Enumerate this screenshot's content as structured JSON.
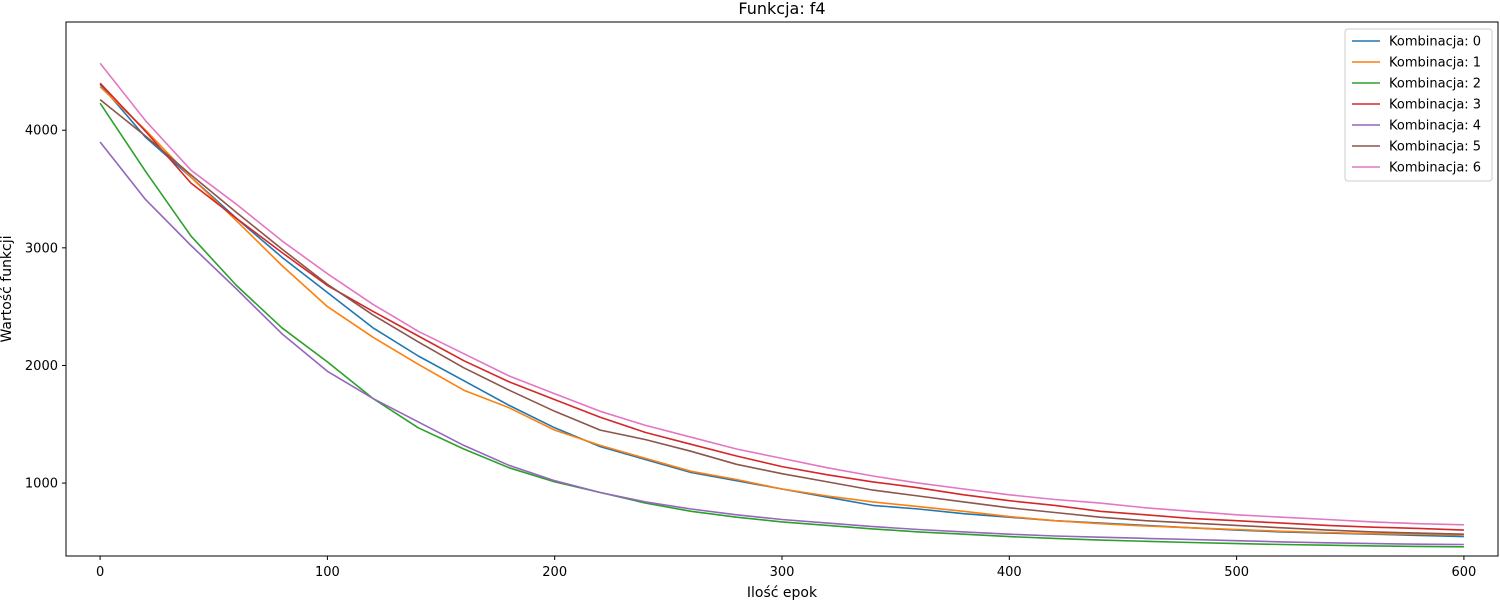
{
  "chart_data": {
    "type": "line",
    "title": "Funkcja: f4",
    "xlabel": "Ilość epok",
    "ylabel": "Wartość funkcji",
    "xlim": [
      -15,
      615
    ],
    "ylim": [
      380,
      4920
    ],
    "xticks": [
      0,
      100,
      200,
      300,
      400,
      500,
      600
    ],
    "yticks": [
      1000,
      2000,
      3000,
      4000
    ],
    "grid": false,
    "legend_position": "top-right",
    "x": [
      0,
      20,
      40,
      60,
      80,
      100,
      120,
      140,
      160,
      180,
      200,
      220,
      240,
      260,
      280,
      300,
      320,
      340,
      360,
      380,
      400,
      420,
      440,
      460,
      480,
      500,
      520,
      540,
      560,
      580,
      600
    ],
    "series": [
      {
        "name": "Kombinacja: 0",
        "color": "#1f77b4",
        "values": [
          4390,
          3940,
          3600,
          3250,
          2920,
          2620,
          2320,
          2080,
          1870,
          1660,
          1470,
          1310,
          1200,
          1090,
          1020,
          950,
          880,
          810,
          780,
          740,
          710,
          680,
          660,
          640,
          620,
          600,
          585,
          575,
          565,
          555,
          545
        ]
      },
      {
        "name": "Kombinacja: 1",
        "color": "#ff7f0e",
        "values": [
          4370,
          4000,
          3600,
          3230,
          2850,
          2500,
          2240,
          2010,
          1790,
          1640,
          1450,
          1320,
          1210,
          1100,
          1030,
          950,
          890,
          840,
          800,
          760,
          715,
          680,
          655,
          635,
          620,
          605,
          590,
          580,
          570,
          565,
          560
        ]
      },
      {
        "name": "Kombinacja: 2",
        "color": "#2ca02c",
        "values": [
          4230,
          3650,
          3100,
          2680,
          2320,
          2030,
          1720,
          1470,
          1290,
          1130,
          1010,
          920,
          830,
          760,
          710,
          670,
          640,
          610,
          585,
          565,
          545,
          530,
          515,
          505,
          495,
          485,
          478,
          472,
          466,
          462,
          458
        ]
      },
      {
        "name": "Kombinacja: 3",
        "color": "#d62728",
        "values": [
          4400,
          3990,
          3550,
          3250,
          2960,
          2680,
          2460,
          2250,
          2040,
          1860,
          1710,
          1560,
          1430,
          1330,
          1230,
          1140,
          1070,
          1010,
          960,
          900,
          850,
          810,
          760,
          730,
          700,
          680,
          660,
          640,
          625,
          615,
          600
        ]
      },
      {
        "name": "Kombinacja: 4",
        "color": "#9467bd",
        "values": [
          3900,
          3410,
          3020,
          2650,
          2270,
          1950,
          1720,
          1520,
          1320,
          1150,
          1020,
          920,
          840,
          780,
          730,
          690,
          660,
          630,
          605,
          585,
          565,
          550,
          540,
          530,
          520,
          510,
          500,
          492,
          485,
          480,
          478
        ]
      },
      {
        "name": "Kombinacja: 5",
        "color": "#8c564b",
        "values": [
          4260,
          3950,
          3620,
          3300,
          2990,
          2690,
          2430,
          2200,
          1980,
          1790,
          1610,
          1450,
          1370,
          1270,
          1160,
          1080,
          1010,
          940,
          890,
          840,
          790,
          750,
          710,
          680,
          660,
          640,
          620,
          600,
          585,
          575,
          565
        ]
      },
      {
        "name": "Kombinacja: 6",
        "color": "#e377c2",
        "values": [
          4570,
          4080,
          3660,
          3370,
          3060,
          2780,
          2520,
          2290,
          2100,
          1910,
          1760,
          1610,
          1490,
          1390,
          1290,
          1210,
          1130,
          1060,
          1000,
          950,
          900,
          860,
          830,
          790,
          760,
          730,
          710,
          690,
          670,
          655,
          645
        ]
      }
    ]
  }
}
